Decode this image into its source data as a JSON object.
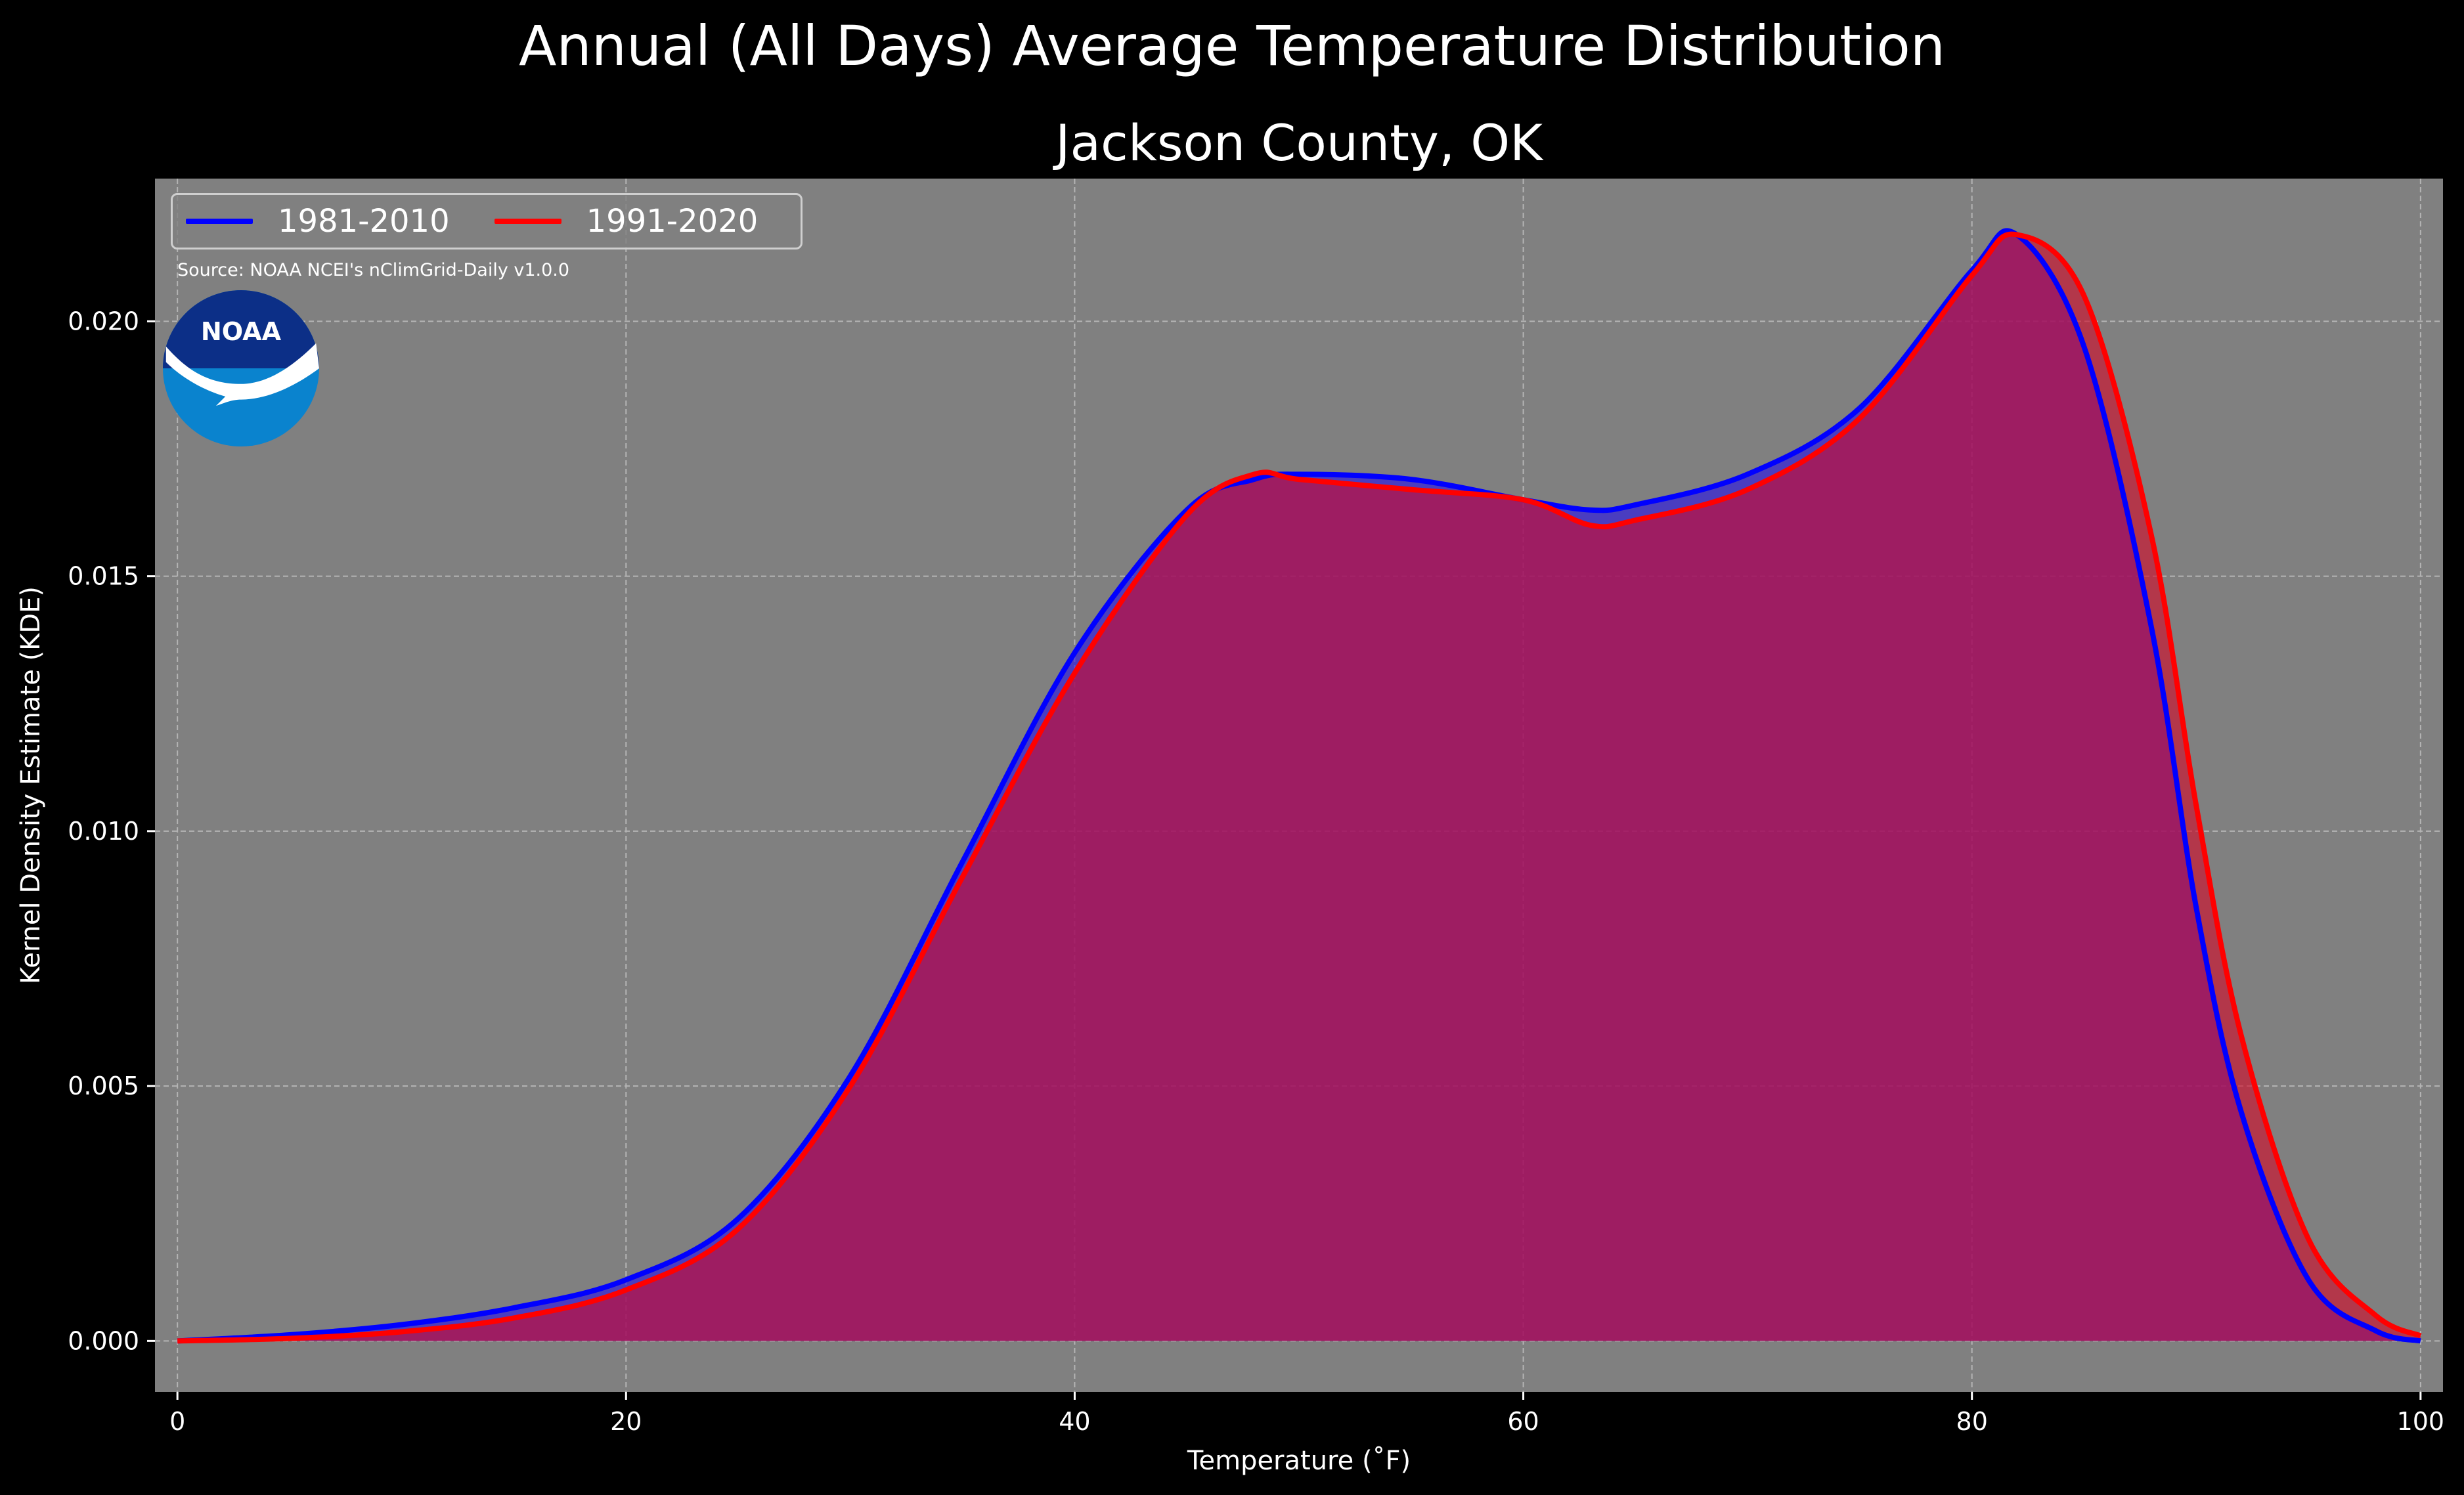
{
  "header": {
    "suptitle": "Annual (All Days) Average Temperature Distribution",
    "title": "Jackson County, OK"
  },
  "source_note": "Source: NOAA NCEI's nClimGrid-Daily v1.0.0",
  "logo": {
    "icon": "noaa-logo",
    "text": "NOAA"
  },
  "colors": {
    "background": "#000000",
    "plot_background": "#808080",
    "series_1981": "#0000ff",
    "series_1991": "#ff0000",
    "overlap_fill": "#9e1f5c"
  },
  "chart_data": {
    "type": "area",
    "xlabel": "Temperature (˚F)",
    "ylabel": "Kernel Density Estimate (KDE)",
    "xlim": [
      -1,
      101
    ],
    "ylim": [
      -0.001,
      0.0228
    ],
    "xticks": [
      0,
      20,
      40,
      60,
      80,
      100
    ],
    "yticks": [
      0.0,
      0.005,
      0.01,
      0.015,
      0.02
    ],
    "xtick_labels": [
      "0",
      "20",
      "40",
      "60",
      "80",
      "100"
    ],
    "ytick_labels": [
      "0.000",
      "0.005",
      "0.010",
      "0.015",
      "0.020"
    ],
    "grid": true,
    "legend_position": "top-left",
    "x": [
      0,
      5,
      10,
      15,
      20,
      25,
      30,
      35,
      40,
      45,
      48,
      50,
      55,
      60,
      63,
      65,
      70,
      75,
      80,
      82,
      85,
      88,
      90,
      92,
      95,
      98,
      100
    ],
    "series": [
      {
        "name": "1981-2010",
        "color": "#0000ff",
        "values": [
          0.0,
          0.00012,
          0.00032,
          0.00065,
          0.0012,
          0.0024,
          0.0052,
          0.0094,
          0.0135,
          0.0163,
          0.0169,
          0.017,
          0.0169,
          0.0165,
          0.0163,
          0.0164,
          0.017,
          0.0183,
          0.021,
          0.0217,
          0.0195,
          0.014,
          0.0085,
          0.0045,
          0.0012,
          0.0002,
          0.0
        ]
      },
      {
        "name": "1991-2020",
        "color": "#ff0000",
        "values": [
          0.0,
          5e-05,
          0.00018,
          0.00045,
          0.001,
          0.0022,
          0.005,
          0.0091,
          0.0131,
          0.0162,
          0.017,
          0.0169,
          0.0167,
          0.0165,
          0.016,
          0.0161,
          0.0167,
          0.0181,
          0.0209,
          0.0217,
          0.0205,
          0.0158,
          0.0105,
          0.006,
          0.002,
          0.0005,
          0.0001
        ]
      }
    ]
  }
}
